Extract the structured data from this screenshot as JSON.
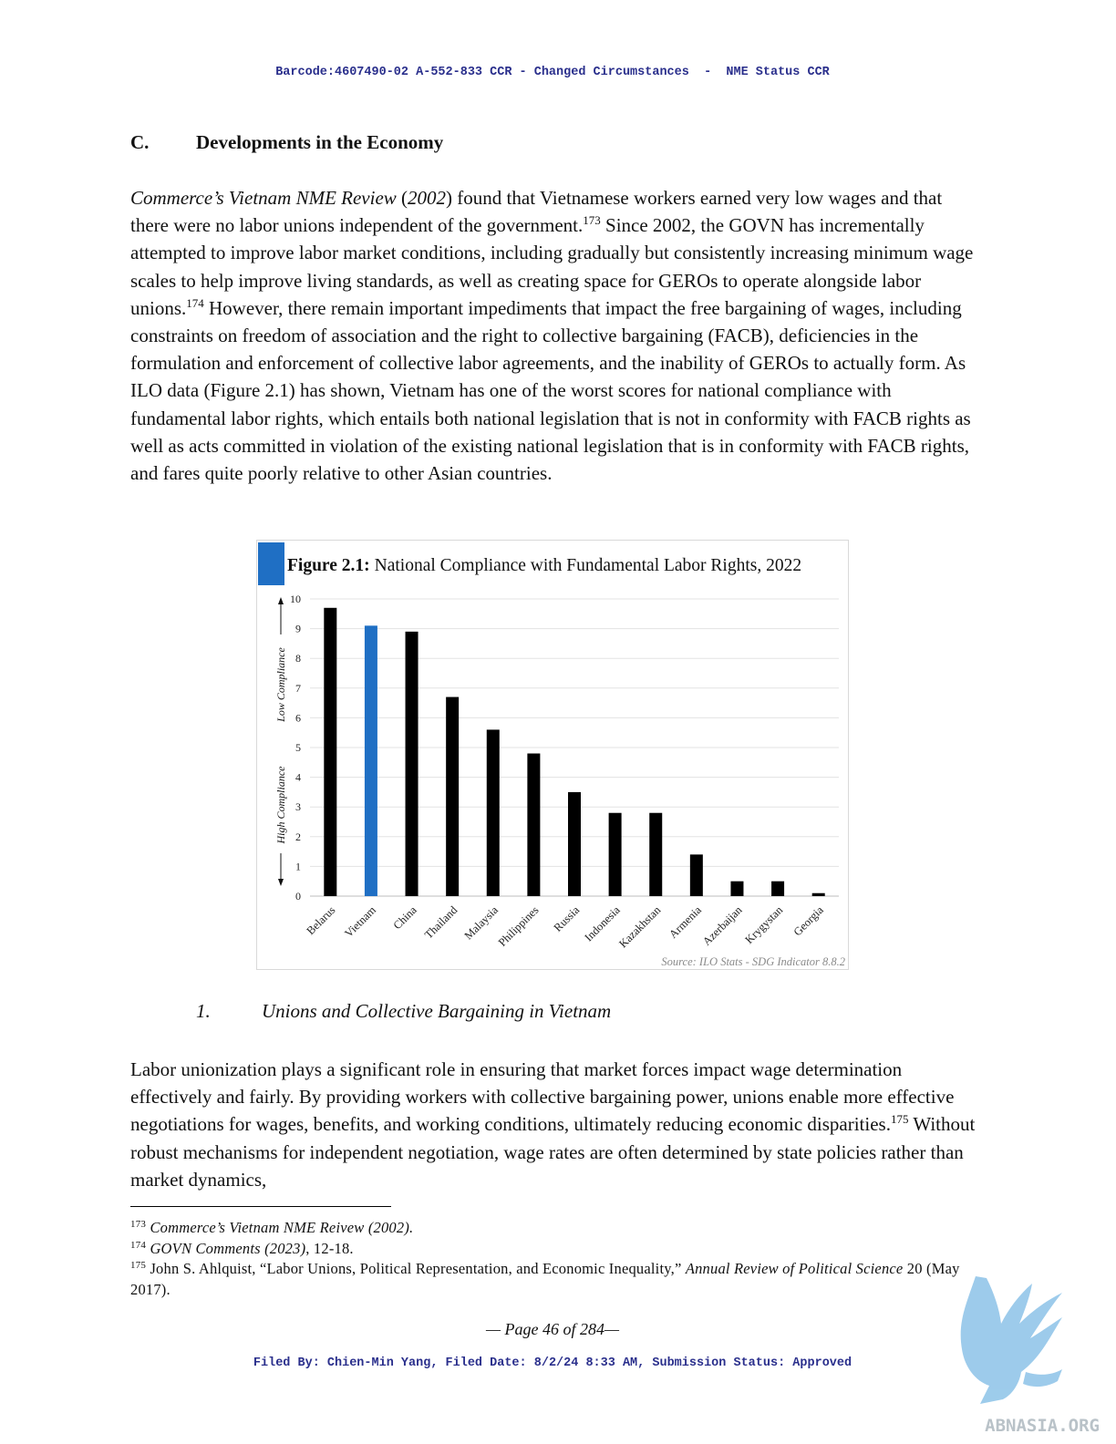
{
  "header_stamp": "Barcode:4607490-02 A-552-833 CCR - Changed Circumstances  -  NME Status CCR",
  "section": {
    "number": "C.",
    "title": "Developments in the Economy"
  },
  "para1": {
    "cite_title": "Commerce’s Vietnam NME Review",
    "cite_open": " (",
    "cite_year": "2002",
    "text1": ") found that Vietnamese workers earned very low wages and that there were no labor unions independent of the government.",
    "fn1": "173",
    "text2": " Since 2002, the GOVN has incrementally attempted to improve labor market conditions, including gradually but consistently increasing minimum wage scales to help improve living standards, as well as creating space for GEROs to operate alongside labor unions.",
    "fn2": "174",
    "text3": " However, there remain important impediments that impact the free bargaining of wages, including constraints on freedom of association and the right to collective bargaining (FACB), deficiencies in the formulation and enforcement of collective labor agreements, and the inability of GEROs to actually form. As ILO data (Figure 2.1) has shown, Vietnam has one of the worst scores for national compliance with fundamental labor rights, which entails both national legislation that is not in conformity with FACB rights as well as acts committed in violation of the existing national legislation that is in conformity with FACB rights, and fares quite poorly relative to other Asian countries."
  },
  "chart_data": {
    "type": "bar",
    "title_prefix": "Figure 2.1:",
    "title": "National Compliance with Fundamental Labor Rights, 2022",
    "categories": [
      "Belarus",
      "Vietnam",
      "China",
      "Thailand",
      "Malaysia",
      "Philippines",
      "Russia",
      "Indonesia",
      "Kazakhstan",
      "Armenia",
      "Azerbaijan",
      "Krygystan",
      "Georgia"
    ],
    "values": [
      9.7,
      9.1,
      8.9,
      6.7,
      5.6,
      4.8,
      3.5,
      2.8,
      2.8,
      1.4,
      0.5,
      0.5,
      0.1
    ],
    "highlight": "Vietnam",
    "bar_color": "#000000",
    "highlight_color": "#1f6fc4",
    "accent_color": "#1f6fc4",
    "ylim": [
      0,
      10
    ],
    "yticks": [
      "0",
      "1",
      "2",
      "3",
      "4",
      "5",
      "6",
      "7",
      "8",
      "9",
      "10"
    ],
    "ylabel_low": "Low Compliance",
    "ylabel_high": "High Compliance",
    "source": "Source: ILO Stats - SDG Indicator 8.8.2",
    "grid": true
  },
  "subsection": {
    "number": "1.",
    "title": "Unions and Collective Bargaining in Vietnam"
  },
  "para2": {
    "text1": "Labor unionization plays a significant role in ensuring that market forces impact wage determination effectively and fairly. By providing workers with collective bargaining power, unions enable more effective negotiations for wages, benefits, and working conditions, ultimately reducing economic disparities.",
    "fn": "175",
    "text2": " Without robust mechanisms for independent negotiation, wage rates are often determined by state policies rather than market dynamics,"
  },
  "footnotes": {
    "f173_num": "173",
    "f173_text": "Commerce’s Vietnam NME Reivew (2002).",
    "f174_num": "174",
    "f174_italic": "GOVN Comments (2023)",
    "f174_rest": ", 12-18.",
    "f175_num": "175",
    "f175_text": "John S. Ahlquist, “Labor Unions, Political Representation, and Economic Inequality,” ",
    "f175_journal": "Annual Review of Political Science",
    "f175_rest": " 20 (May 2017)."
  },
  "page_number": "— Page 46 of 284—",
  "footer_stamp": "Filed By: Chien-Min Yang, Filed Date: 8/2/24 8:33 AM, Submission Status: Approved",
  "watermark": {
    "text": "ABNASIA.ORG",
    "icon": "griffin-logo-icon",
    "color": "#8cc3e8"
  }
}
